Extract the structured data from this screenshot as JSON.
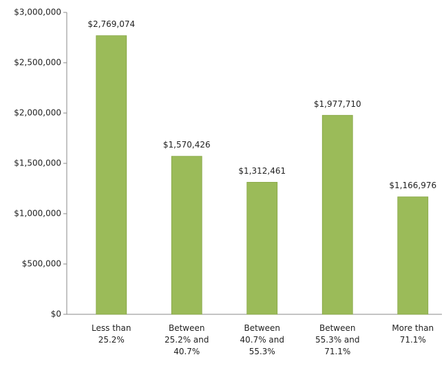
{
  "chart_data": {
    "type": "bar",
    "categories": [
      "Less than\n25.2%",
      "Between\n25.2% and\n40.7%",
      "Between\n40.7% and\n55.3%",
      "Between\n55.3% and\n71.1%",
      "More than\n71.1%"
    ],
    "values": [
      2769074,
      1570426,
      1312461,
      1977710,
      1166976
    ],
    "value_labels": [
      "$2,769,074",
      "$1,570,426",
      "$1,312,461",
      "$1,977,710",
      "$1,166,976"
    ],
    "color": "#9bbb59",
    "ylim": [
      0,
      3000000
    ],
    "yticks": [
      {
        "value": 0,
        "label": "$0"
      },
      {
        "value": 500000,
        "label": "$500,000"
      },
      {
        "value": 1000000,
        "label": "$1,000,000"
      },
      {
        "value": 1500000,
        "label": "$1,500,000"
      },
      {
        "value": 2000000,
        "label": "$2,000,000"
      },
      {
        "value": 2500000,
        "label": "$2,500,000"
      },
      {
        "value": 3000000,
        "label": "$3,000,000"
      }
    ],
    "grid": false
  }
}
